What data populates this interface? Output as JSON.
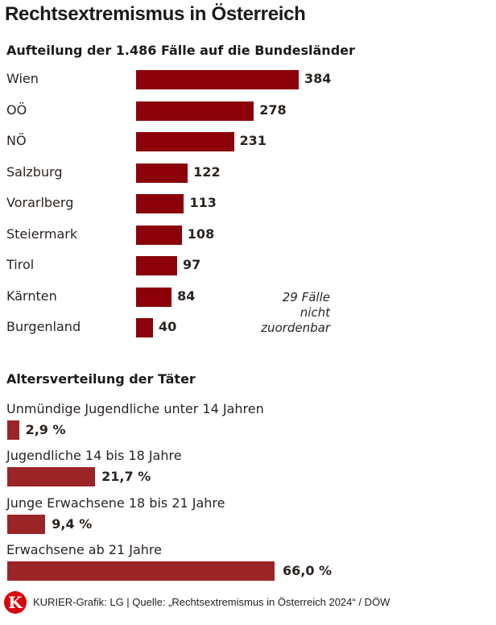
{
  "title": "Rechtsextremismus in Österreich",
  "chart_data": [
    {
      "type": "bar",
      "orientation": "horizontal",
      "title": "Aufteilung der 1.486 Fälle auf die Bundesländer",
      "categories": [
        "Wien",
        "OÖ",
        "NÖ",
        "Salzburg",
        "Vorarlberg",
        "Steiermark",
        "Tirol",
        "Kärnten",
        "Burgenland"
      ],
      "values": [
        384,
        278,
        231,
        122,
        113,
        108,
        97,
        84,
        40
      ],
      "value_labels": [
        "384",
        "278",
        "231",
        "122",
        "113",
        "108",
        "97",
        "84",
        "40"
      ],
      "annotation": [
        "29 Fälle",
        "nicht",
        "zuordenbar"
      ],
      "color": "#8b0009"
    },
    {
      "type": "bar",
      "orientation": "horizontal",
      "title": "Altersverteilung der Täter",
      "categories": [
        "Unmündige Jugendliche unter 14 Jahren",
        "Jugendliche 14 bis 18 Jahre",
        "Junge Erwachsene 18 bis 21 Jahre",
        "Erwachsene ab 21 Jahre"
      ],
      "values": [
        2.9,
        21.7,
        9.4,
        66.0
      ],
      "value_labels": [
        "2,9 %",
        "21,7 %",
        "9,4 %",
        "66,0 %"
      ],
      "unit": "%",
      "color": "#9b2426"
    }
  ],
  "footer": {
    "logo": "K",
    "source": "KURIER-Grafik: LG | Quelle: „Rechtsextremismus in Österreich 2024“ / DÖW"
  }
}
